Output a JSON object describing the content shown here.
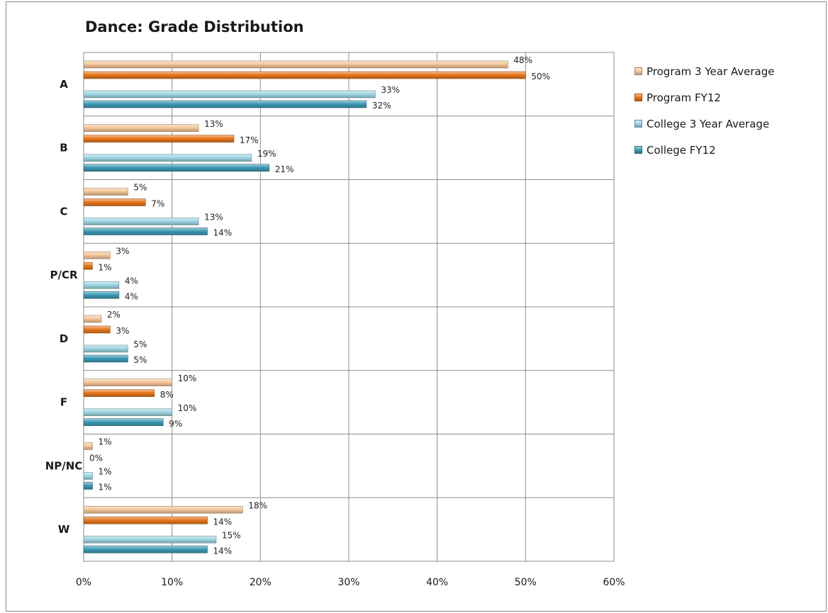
{
  "chart_data": {
    "type": "bar",
    "orientation": "horizontal",
    "title": "Dance: Grade Distribution",
    "xlabel": "",
    "ylabel": "",
    "categories": [
      "A",
      "B",
      "C",
      "P/CR",
      "D",
      "F",
      "NP/NC",
      "W"
    ],
    "series": [
      {
        "name": "Program 3 Year Average",
        "color": "#f6c79a",
        "values": [
          48,
          13,
          5,
          3,
          2,
          10,
          1,
          18
        ],
        "labels": [
          "48%",
          "13%",
          "5%",
          "3%",
          "2%",
          "10%",
          "1%",
          "18%"
        ]
      },
      {
        "name": "Program FY12",
        "color": "#e8781d",
        "values": [
          50,
          17,
          7,
          1,
          3,
          8,
          0,
          14
        ],
        "labels": [
          "50%",
          "17%",
          "7%",
          "1%",
          "3%",
          "8%",
          "0%",
          "14%"
        ]
      },
      {
        "name": "College 3 Year Average",
        "color": "#9fd8e4",
        "values": [
          33,
          19,
          13,
          4,
          5,
          10,
          1,
          15
        ],
        "labels": [
          "33%",
          "19%",
          "13%",
          "4%",
          "5%",
          "10%",
          "1%",
          "15%"
        ]
      },
      {
        "name": "College FY12",
        "color": "#3d9bb6",
        "values": [
          32,
          21,
          14,
          4,
          5,
          9,
          1,
          14
        ],
        "labels": [
          "32%",
          "21%",
          "14%",
          "4%",
          "5%",
          "9%",
          "1%",
          "14%"
        ]
      }
    ],
    "xlim": [
      0,
      60
    ],
    "xticks": [
      0,
      10,
      20,
      30,
      40,
      50,
      60
    ],
    "xtick_labels": [
      "0%",
      "10%",
      "20%",
      "30%",
      "40%",
      "50%",
      "60%"
    ],
    "grid": true,
    "legend": "right"
  }
}
